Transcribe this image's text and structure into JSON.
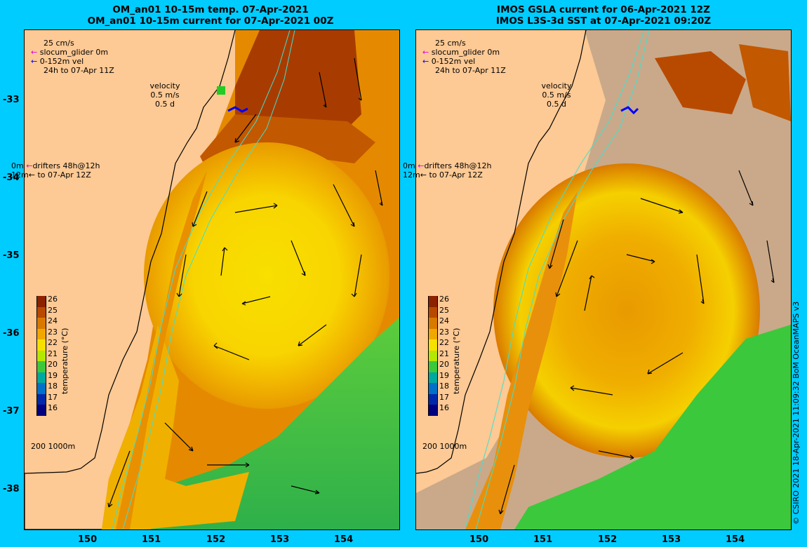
{
  "panels": [
    {
      "title1": "OM_an01 10-15m temp. 07-Apr-2021",
      "title2": "OM_an01 10-15m current for 07-Apr-2021 00Z"
    },
    {
      "title1": "IMOS GSLA current for 06-Apr-2021 12Z",
      "title2": "IMOS L3S-3d SST at 07-Apr-2021 09:20Z"
    }
  ],
  "legend": {
    "scale": "25 cm/s",
    "glider": "slocum_glider 0m",
    "vel": "0-152m vel",
    "period": "24h to 07-Apr 11Z",
    "velocity": "velocity",
    "vel_scale": "0.5 m/s",
    "vel_days": "0.5 d",
    "drifters_depth": "0m",
    "drifters": "drifters 48h@12h",
    "drifters_depth2": "12m",
    "drifters_period": "to 07-Apr 12Z",
    "isobaths": "200  1000m"
  },
  "colorbar": {
    "label": "temperature (°C)",
    "ticks": [
      "26",
      "25",
      "24",
      "23",
      "22",
      "21",
      "20",
      "19",
      "18",
      "17",
      "16"
    ],
    "colors": [
      "#8b2200",
      "#b84a00",
      "#d97a00",
      "#f0a800",
      "#f5e000",
      "#b4e800",
      "#3cc83c",
      "#00a8a0",
      "#0070c8",
      "#0028a8",
      "#000080"
    ]
  },
  "axes": {
    "xticks": [
      "150",
      "151",
      "152",
      "153",
      "154"
    ],
    "yticks": [
      "-33",
      "-34",
      "-35",
      "-36",
      "-37",
      "-38"
    ]
  },
  "copyright": "© CSIRO 2021  18-Apr-2021 11:09:32 BoM OceanMAPS v3",
  "colors": {
    "land": "#fdc994",
    "background": "#00ccff"
  }
}
